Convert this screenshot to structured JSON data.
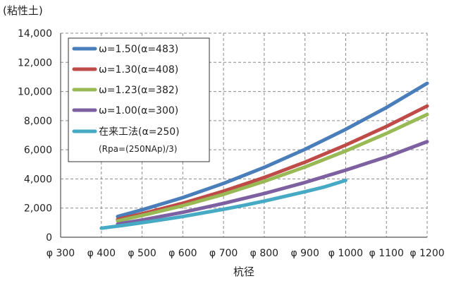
{
  "chart_data": {
    "type": "line",
    "unit_label": "(粘性土)",
    "xlabel": "杭径",
    "x_ticks": [
      "φ 300",
      "φ 400",
      "φ 500",
      "φ 600",
      "φ 700",
      "φ 800",
      "φ 900",
      "φ 1000",
      "φ 1100",
      "φ 1200"
    ],
    "x_tick_values": [
      300,
      400,
      500,
      600,
      700,
      800,
      900,
      1000,
      1100,
      1200
    ],
    "xlim": [
      300,
      1200
    ],
    "y_ticks": [
      "0",
      "2,000",
      "4,000",
      "6,000",
      "8,000",
      "10,000",
      "12,000",
      "14,000"
    ],
    "y_tick_values": [
      0,
      2000,
      4000,
      6000,
      8000,
      10000,
      12000,
      14000
    ],
    "ylim": [
      0,
      14000
    ],
    "grid": true,
    "legend_position": "top-left",
    "series": [
      {
        "name": "ω=1.50(α=483)",
        "color": "#4a7ebb",
        "x": [
          440,
          500,
          600,
          700,
          800,
          900,
          1000,
          1100,
          1200
        ],
        "y": [
          1420,
          1880,
          2720,
          3690,
          4790,
          6030,
          7400,
          8900,
          10560
        ]
      },
      {
        "name": "ω=1.30(α=408)",
        "color": "#be4b48",
        "x": [
          440,
          500,
          600,
          700,
          800,
          900,
          1000,
          1100,
          1200
        ],
        "y": [
          1220,
          1610,
          2330,
          3160,
          4100,
          5150,
          6320,
          7600,
          9000
        ]
      },
      {
        "name": "ω=1.23(α=382)",
        "color": "#98b954",
        "x": [
          440,
          500,
          600,
          700,
          800,
          900,
          1000,
          1100,
          1200
        ],
        "y": [
          1120,
          1490,
          2160,
          2940,
          3830,
          4820,
          5920,
          7120,
          8420
        ]
      },
      {
        "name": "ω=1.00(α=300)",
        "color": "#7d60a0",
        "x": [
          440,
          500,
          600,
          700,
          800,
          900,
          1000,
          1100,
          1200
        ],
        "y": [
          900,
          1180,
          1710,
          2320,
          3000,
          3760,
          4600,
          5510,
          6560
        ]
      },
      {
        "name": "在来工法(α=250)",
        "sub": "(Rpa=(250NAp)/3)",
        "color": "#46aac5",
        "x": [
          400,
          450,
          500,
          550,
          600,
          650,
          700,
          750,
          800,
          850,
          900,
          950,
          1000
        ],
        "y": [
          620,
          800,
          1000,
          1200,
          1420,
          1670,
          1920,
          2190,
          2480,
          2800,
          3120,
          3470,
          3900
        ]
      }
    ]
  }
}
